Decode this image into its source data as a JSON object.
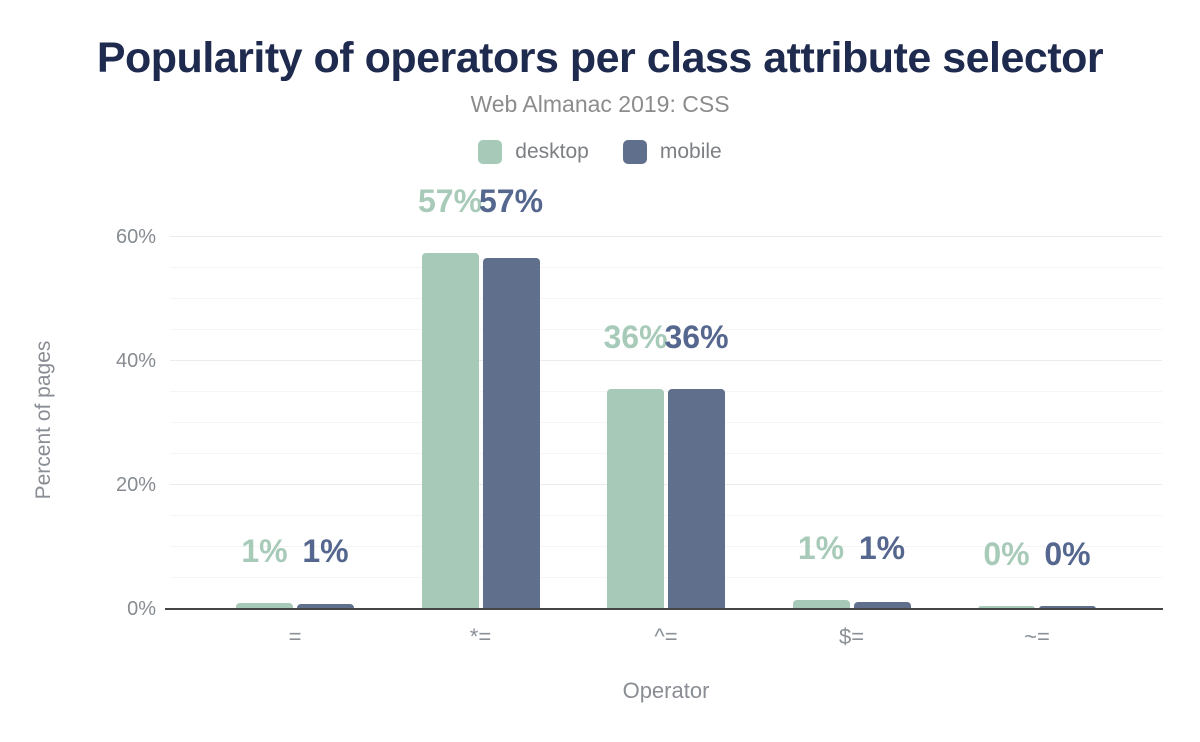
{
  "chart_data": {
    "type": "bar",
    "title": "Popularity of operators per class attribute selector",
    "subtitle": "Web Almanac 2019: CSS",
    "xlabel": "Operator",
    "ylabel": "Percent of pages",
    "categories": [
      "=",
      "*=",
      "^=",
      "$=",
      "~="
    ],
    "series": [
      {
        "name": "desktop",
        "color": "#a6c9b8",
        "label_color": "#a8cbb9",
        "values": [
          0.9,
          57.4,
          35.5,
          1.4,
          0.4
        ],
        "data_labels": [
          "1%",
          "57%",
          "36%",
          "1%",
          "0%"
        ]
      },
      {
        "name": "mobile",
        "color": "#60708c",
        "label_color": "#55678e",
        "values": [
          0.85,
          56.6,
          35.5,
          1.1,
          0.45
        ],
        "data_labels": [
          "1%",
          "57%",
          "36%",
          "1%",
          "0%"
        ]
      }
    ],
    "yticks": [
      {
        "value": 0,
        "label": "0%"
      },
      {
        "value": 20,
        "label": "20%"
      },
      {
        "value": 40,
        "label": "40%"
      },
      {
        "value": 60,
        "label": "60%"
      }
    ],
    "ylim": [
      0,
      62.9
    ],
    "minor_grid_step": 5,
    "grid": "horizontal",
    "legend_position": "top center"
  }
}
